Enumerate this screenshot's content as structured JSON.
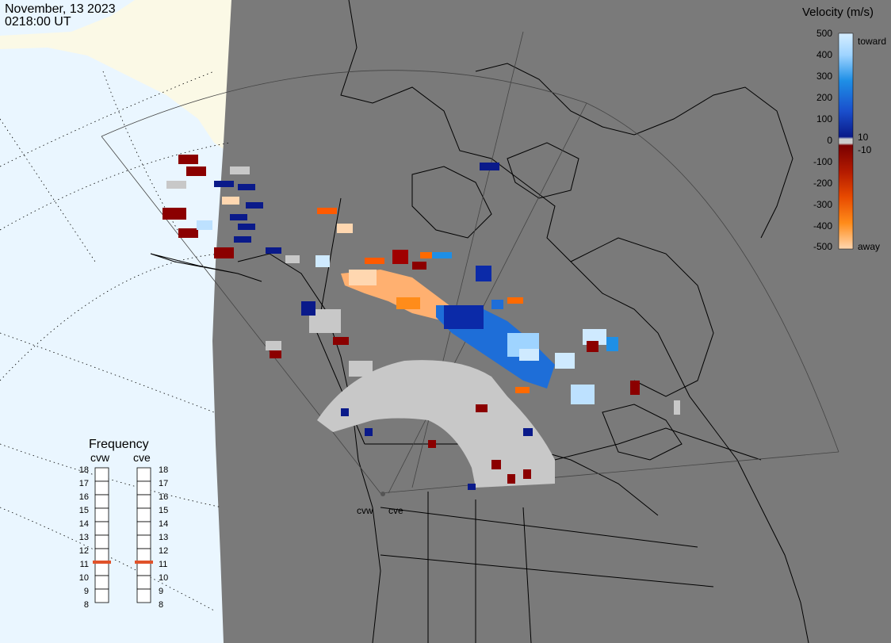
{
  "header": {
    "date": "November, 13 2023",
    "time": "0218:00 UT"
  },
  "colorbar": {
    "title": "Velocity (m/s)",
    "ticks": [
      "500",
      "400",
      "300",
      "200",
      "100",
      "10",
      "0",
      "-10",
      "-100",
      "-200",
      "-300",
      "-400",
      "-500"
    ],
    "toward_label": "toward",
    "away_label": "away",
    "colors": {
      "toward_strong": "#cfeaff",
      "toward_mid": "#1e8fe6",
      "toward_weak": "#0a1a8a",
      "ground_scatter": "#c8c8c8",
      "away_weak": "#8b0000",
      "away_mid": "#ff6a00",
      "away_strong": "#ffd7b0"
    }
  },
  "frequency_panel": {
    "title": "Frequency",
    "radars": [
      {
        "name": "cvw",
        "value": 11
      },
      {
        "name": "cve",
        "value": 11
      }
    ],
    "scale": [
      "18",
      "17",
      "16",
      "15",
      "14",
      "13",
      "12",
      "11",
      "10",
      "9",
      "8"
    ],
    "marker_color": "#e0522a"
  },
  "map": {
    "radar_labels": [
      "cvw",
      "cve"
    ],
    "land_color": "#7a7a7a",
    "ocean_color": "#eaf6ff",
    "ice_color": "#fbf9e6"
  }
}
